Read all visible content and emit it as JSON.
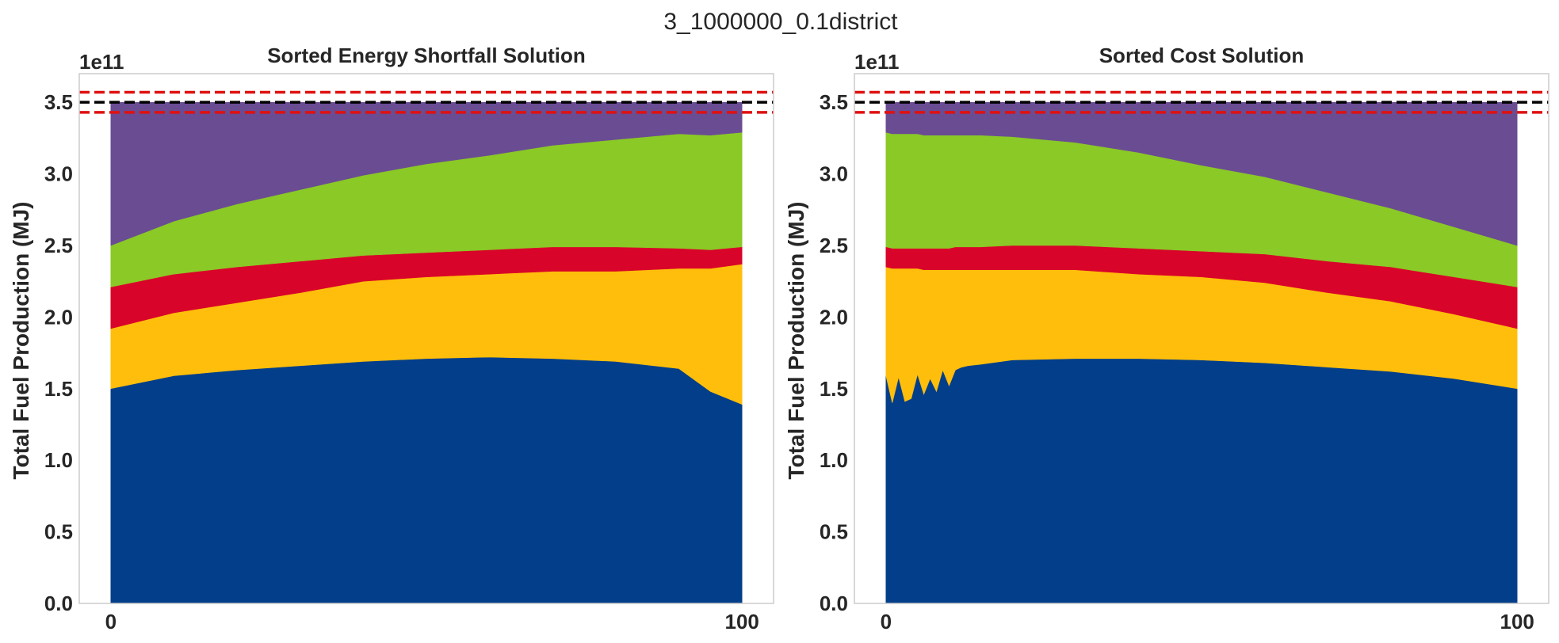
{
  "figure": {
    "suptitle": "3_1000000_0.1district",
    "colors": {
      "layer_1": "#023e8a",
      "layer_2": "#ffbe0b",
      "layer_3": "#d90429",
      "layer_4": "#8ac926",
      "layer_5": "#6a4c93",
      "target_line": "#000000",
      "bound_lines": "#e01010",
      "frame": "#cccccc"
    }
  },
  "chart_data": [
    {
      "type": "area",
      "stacked": true,
      "title": "Sorted Energy Shortfall Solution",
      "xlabel": "",
      "ylabel": "Total Fuel Production (MJ)",
      "y_offset_label": "1e11",
      "xlim": [
        -5,
        105
      ],
      "ylim": [
        0,
        3.7
      ],
      "y_scale_note": "values in units of 1e11 MJ",
      "x_ticks": [
        0,
        100
      ],
      "y_ticks": [
        "0.0",
        "0.5",
        "1.0",
        "1.5",
        "2.0",
        "2.5",
        "3.0",
        "3.5"
      ],
      "grid": false,
      "hlines": [
        {
          "y": 3.57,
          "style": "dashed",
          "color": "#e01010"
        },
        {
          "y": 3.5,
          "style": "dashed",
          "color": "#000000"
        },
        {
          "y": 3.43,
          "style": "dashed",
          "color": "#e01010"
        }
      ],
      "x": [
        0,
        10,
        20,
        30,
        40,
        50,
        60,
        70,
        80,
        90,
        95,
        100
      ],
      "series": [
        {
          "values": [
            1.5,
            1.59,
            1.63,
            1.66,
            1.69,
            1.71,
            1.72,
            1.71,
            1.69,
            1.64,
            1.48,
            1.39
          ]
        },
        {
          "values": [
            0.42,
            0.44,
            0.47,
            0.51,
            0.56,
            0.57,
            0.58,
            0.61,
            0.63,
            0.7,
            0.86,
            0.98
          ]
        },
        {
          "values": [
            0.29,
            0.27,
            0.25,
            0.22,
            0.18,
            0.17,
            0.17,
            0.17,
            0.17,
            0.14,
            0.13,
            0.12
          ]
        },
        {
          "values": [
            0.29,
            0.37,
            0.44,
            0.5,
            0.56,
            0.62,
            0.66,
            0.71,
            0.75,
            0.8,
            0.8,
            0.8
          ]
        },
        {
          "values": [
            1.0,
            0.83,
            0.71,
            0.61,
            0.51,
            0.43,
            0.37,
            0.3,
            0.26,
            0.22,
            0.23,
            0.21
          ]
        }
      ]
    },
    {
      "type": "area",
      "stacked": true,
      "title": "Sorted Cost Solution",
      "xlabel": "",
      "ylabel": "Total Fuel Production (MJ)",
      "y_offset_label": "1e11",
      "xlim": [
        -5,
        105
      ],
      "ylim": [
        0,
        3.7
      ],
      "y_scale_note": "values in units of 1e11 MJ",
      "x_ticks": [
        0,
        100
      ],
      "y_ticks": [
        "0.0",
        "0.5",
        "1.0",
        "1.5",
        "2.0",
        "2.5",
        "3.0",
        "3.5"
      ],
      "grid": false,
      "hlines": [
        {
          "y": 3.57,
          "style": "dashed",
          "color": "#e01010"
        },
        {
          "y": 3.5,
          "style": "dashed",
          "color": "#000000"
        },
        {
          "y": 3.43,
          "style": "dashed",
          "color": "#e01010"
        }
      ],
      "x": [
        0,
        1,
        2,
        3,
        4,
        5,
        6,
        7,
        8,
        9,
        10,
        11,
        12,
        13,
        15,
        20,
        30,
        40,
        50,
        60,
        70,
        80,
        90,
        100
      ],
      "series": [
        {
          "values": [
            1.59,
            1.4,
            1.58,
            1.41,
            1.43,
            1.6,
            1.46,
            1.57,
            1.48,
            1.63,
            1.52,
            1.63,
            1.65,
            1.66,
            1.67,
            1.7,
            1.71,
            1.71,
            1.7,
            1.68,
            1.65,
            1.62,
            1.57,
            1.5
          ]
        },
        {
          "values": [
            0.76,
            0.94,
            0.76,
            0.93,
            0.91,
            0.74,
            0.87,
            0.76,
            0.85,
            0.7,
            0.81,
            0.7,
            0.68,
            0.67,
            0.66,
            0.63,
            0.62,
            0.59,
            0.58,
            0.56,
            0.52,
            0.49,
            0.45,
            0.42
          ]
        },
        {
          "values": [
            0.14,
            0.14,
            0.14,
            0.14,
            0.14,
            0.14,
            0.15,
            0.15,
            0.15,
            0.15,
            0.15,
            0.16,
            0.16,
            0.16,
            0.16,
            0.17,
            0.17,
            0.18,
            0.18,
            0.2,
            0.22,
            0.24,
            0.26,
            0.29
          ]
        },
        {
          "values": [
            0.8,
            0.8,
            0.8,
            0.8,
            0.8,
            0.8,
            0.79,
            0.79,
            0.79,
            0.79,
            0.79,
            0.78,
            0.78,
            0.78,
            0.78,
            0.76,
            0.72,
            0.67,
            0.6,
            0.54,
            0.48,
            0.41,
            0.35,
            0.29
          ]
        },
        {
          "values": [
            0.21,
            0.22,
            0.22,
            0.22,
            0.22,
            0.22,
            0.23,
            0.23,
            0.23,
            0.23,
            0.23,
            0.23,
            0.23,
            0.23,
            0.23,
            0.24,
            0.28,
            0.35,
            0.44,
            0.52,
            0.63,
            0.74,
            0.87,
            1.0
          ]
        }
      ]
    }
  ]
}
